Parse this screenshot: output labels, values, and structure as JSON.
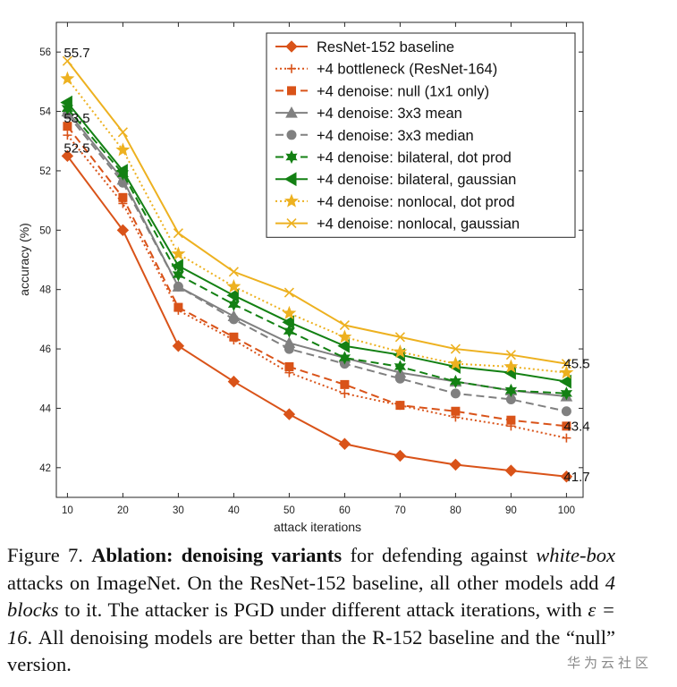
{
  "chart_data": {
    "type": "line",
    "title": "",
    "xlabel": "attack iterations",
    "ylabel": "accuracy (%)",
    "x": [
      10,
      20,
      30,
      40,
      50,
      60,
      70,
      80,
      90,
      100
    ],
    "xlim": [
      8,
      103
    ],
    "ylim": [
      41,
      57
    ],
    "yticks": [
      42,
      44,
      46,
      48,
      50,
      52,
      54,
      56
    ],
    "grid": false,
    "legend_position": "top-right",
    "series": [
      {
        "name": "ResNet-152 baseline",
        "color": "#d95319",
        "linestyle": "solid",
        "marker": "diamond",
        "values": [
          52.5,
          50.0,
          46.1,
          44.9,
          43.8,
          42.8,
          42.4,
          42.1,
          41.9,
          41.7
        ]
      },
      {
        "name": "+4 bottleneck (ResNet-164)",
        "color": "#d95319",
        "linestyle": "dotted",
        "marker": "plus",
        "values": [
          53.2,
          50.9,
          47.3,
          46.3,
          45.2,
          44.5,
          44.1,
          43.7,
          43.4,
          43.0
        ]
      },
      {
        "name": "+4 denoise: null (1x1 only)",
        "color": "#d95319",
        "linestyle": "dashed",
        "marker": "square",
        "values": [
          53.5,
          51.1,
          47.4,
          46.4,
          45.4,
          44.8,
          44.1,
          43.9,
          43.6,
          43.4
        ]
      },
      {
        "name": "+4 denoise: 3x3 mean",
        "color": "#808080",
        "linestyle": "solid",
        "marker": "triangle",
        "values": [
          54.0,
          51.7,
          48.1,
          47.1,
          46.2,
          45.7,
          45.2,
          44.9,
          44.6,
          44.4
        ]
      },
      {
        "name": "+4 denoise: 3x3 median",
        "color": "#808080",
        "linestyle": "dashed",
        "marker": "circle",
        "values": [
          53.9,
          51.6,
          48.1,
          47.0,
          46.0,
          45.5,
          45.0,
          44.5,
          44.3,
          43.9
        ]
      },
      {
        "name": "+4 denoise: bilateral, dot prod",
        "color": "#138013",
        "linestyle": "dashed",
        "marker": "hexagram",
        "values": [
          54.1,
          51.9,
          48.5,
          47.5,
          46.6,
          45.7,
          45.4,
          44.9,
          44.6,
          44.5
        ]
      },
      {
        "name": "+4 denoise: bilateral, gaussian",
        "color": "#138013",
        "linestyle": "solid",
        "marker": "triangle-left",
        "values": [
          54.3,
          52.0,
          48.8,
          47.8,
          46.9,
          46.1,
          45.8,
          45.4,
          45.2,
          44.9
        ]
      },
      {
        "name": "+4 denoise: nonlocal, dot prod",
        "color": "#edb120",
        "linestyle": "dotted",
        "marker": "star",
        "values": [
          55.1,
          52.7,
          49.2,
          48.1,
          47.2,
          46.4,
          45.9,
          45.5,
          45.4,
          45.2
        ]
      },
      {
        "name": "+4 denoise: nonlocal, gaussian",
        "color": "#edb120",
        "linestyle": "solid",
        "marker": "x",
        "values": [
          55.7,
          53.3,
          49.9,
          48.6,
          47.9,
          46.8,
          46.4,
          46.0,
          45.8,
          45.5
        ]
      }
    ],
    "annotations": [
      "55.7",
      "53.5",
      "52.5",
      "45.5",
      "43.4",
      "41.7"
    ]
  },
  "caption": {
    "figure_label": "Figure 7.",
    "bold_title": "Ablation: denoising variants",
    "t1": " for defending against ",
    "italic1": "white-box",
    "t2": " attacks on ImageNet. On the ResNet-152 baseline, all other models add ",
    "italic2": "4 blocks",
    "t3": " to it. The attacker is PGD under different attack iterations, with ",
    "epsilon_expr": "ε = 16",
    "t4": ". All denoising models are better than the R-152 baseline and the “null” version."
  },
  "watermark": "华为云社区"
}
